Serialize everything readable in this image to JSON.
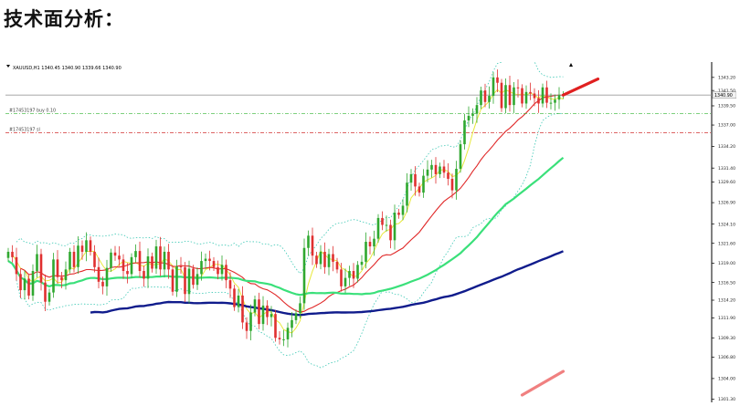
{
  "page": {
    "heading": "技术面分析："
  },
  "chart_data": {
    "type": "candlestick",
    "symbol_info": "XAUUSD,H1  1340.45 1340.90 1339.66 1340.90",
    "order_labels": [
      "#17453197 buy 0.10",
      "#17453197 sl"
    ],
    "order_levels": [
      1338.5,
      1336.0
    ],
    "current_price": 1340.9,
    "current_price_label": "1340.90",
    "y_ticks": [
      {
        "value": 1343.2,
        "label": "1343.20"
      },
      {
        "value": 1341.5,
        "label": "1341.50"
      },
      {
        "value": 1339.5,
        "label": "1339.50"
      },
      {
        "value": 1337.0,
        "label": "1337.00"
      },
      {
        "value": 1334.2,
        "label": "1334.20"
      },
      {
        "value": 1331.4,
        "label": "1331.40"
      },
      {
        "value": 1329.6,
        "label": "1329.60"
      },
      {
        "value": 1326.9,
        "label": "1326.90"
      },
      {
        "value": 1324.1,
        "label": "1324.10"
      },
      {
        "value": 1321.6,
        "label": "1321.60"
      },
      {
        "value": 1319.0,
        "label": "1319.00"
      },
      {
        "value": 1316.5,
        "label": "1316.50"
      },
      {
        "value": 1314.2,
        "label": "1314.20"
      },
      {
        "value": 1311.9,
        "label": "1311.90"
      },
      {
        "value": 1309.3,
        "label": "1309.30"
      },
      {
        "value": 1306.8,
        "label": "1306.80"
      },
      {
        "value": 1304.0,
        "label": "1304.00"
      },
      {
        "value": 1301.3,
        "label": "1301.30"
      }
    ],
    "ylim": [
      1300.9,
      1345.2
    ],
    "closes": [
      1320.5,
      1319.8,
      1317.6,
      1315.5,
      1317.0,
      1314.8,
      1318.0,
      1320.2,
      1316.5,
      1314.0,
      1315.2,
      1319.5,
      1317.2,
      1316.8,
      1318.2,
      1320.5,
      1318.5,
      1321.3,
      1320.5,
      1322.0,
      1320.5,
      1318.5,
      1316.6,
      1316.0,
      1318.4,
      1320.4,
      1320.0,
      1319.5,
      1318.0,
      1317.6,
      1319.8,
      1320.6,
      1318.0,
      1317.0,
      1319.9,
      1318.3,
      1321.2,
      1318.2,
      1320.5,
      1318.2,
      1315.3,
      1318.6,
      1318.5,
      1315.0,
      1318.3,
      1316.2,
      1317.6,
      1319.3,
      1319.6,
      1319.3,
      1318.5,
      1317.6,
      1318.8,
      1316.8,
      1315.7,
      1313.3,
      1314.8,
      1311.3,
      1310.2,
      1312.6,
      1314.3,
      1311.1,
      1313.5,
      1312.0,
      1312.4,
      1309.3,
      1309.1,
      1309.1,
      1310.6,
      1311.6,
      1312.5,
      1313.8,
      1321.0,
      1322.6,
      1320.0,
      1318.9,
      1320.5,
      1318.5,
      1320.2,
      1319.2,
      1318.2,
      1316.0,
      1317.1,
      1318.0,
      1317.0,
      1318.8,
      1319.2,
      1321.8,
      1321.2,
      1322.2,
      1324.9,
      1324.0,
      1324.0,
      1322.0,
      1325.6,
      1325.3,
      1326.5,
      1329.5,
      1330.6,
      1329.0,
      1328.2,
      1330.4,
      1331.2,
      1331.8,
      1330.6,
      1331.6,
      1330.8,
      1330.0,
      1328.5,
      1331.3,
      1334.5,
      1337.6,
      1338.2,
      1338.5,
      1339.6,
      1341.5,
      1340.0,
      1340.8,
      1343.2,
      1342.5,
      1339.2,
      1342.2,
      1339.6,
      1341.9,
      1341.8,
      1339.8,
      1341.3,
      1341.1,
      1340.5,
      1339.8,
      1341.9,
      1339.9,
      1339.9,
      1340.3,
      1340.9,
      1340.9
    ],
    "forecast_up": [
      1340.9,
      1343.0
    ]
  }
}
